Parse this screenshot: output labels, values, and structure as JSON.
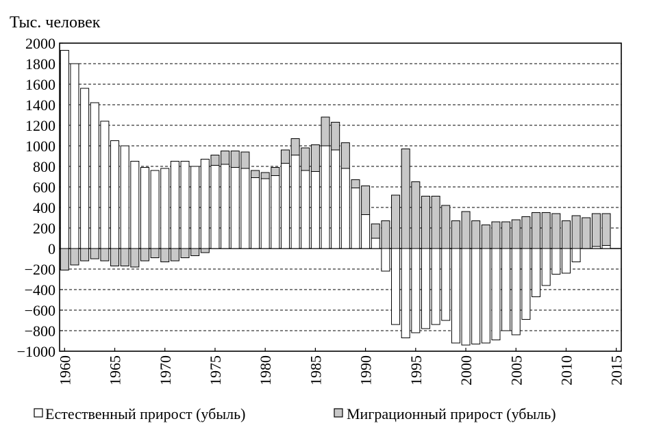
{
  "chart_data": {
    "type": "bar",
    "stacked": true,
    "title": "",
    "ylabel": "Тыс. человек",
    "xlabel": "",
    "ylim": [
      -1000,
      2000
    ],
    "yticks": [
      2000,
      1800,
      1600,
      1400,
      1200,
      1000,
      800,
      600,
      400,
      200,
      0,
      -200,
      -400,
      -600,
      -800,
      -1000
    ],
    "ytick_labels": [
      "2000",
      "1800",
      "1600",
      "1400",
      "1200",
      "1000",
      "800",
      "600",
      "400",
      "200",
      "0",
      "−200",
      "−400",
      "−600",
      "−800",
      "−1000"
    ],
    "xticks": [
      "1960",
      "1965",
      "1970",
      "1975",
      "1980",
      "1985",
      "1990",
      "1995",
      "2000",
      "2005",
      "2010",
      "2015"
    ],
    "grid": "horizontal-dashed",
    "legend_position": "bottom",
    "years": [
      1960,
      1961,
      1962,
      1963,
      1964,
      1965,
      1966,
      1967,
      1968,
      1969,
      1970,
      1971,
      1972,
      1973,
      1974,
      1975,
      1976,
      1977,
      1978,
      1979,
      1980,
      1981,
      1982,
      1983,
      1984,
      1985,
      1986,
      1987,
      1988,
      1989,
      1990,
      1991,
      1992,
      1993,
      1994,
      1995,
      1996,
      1997,
      1998,
      1999,
      2000,
      2001,
      2002,
      2003,
      2004,
      2005,
      2006,
      2007,
      2008,
      2009,
      2010,
      2011,
      2012,
      2013,
      2014
    ],
    "series": [
      {
        "name": "Естественный прирост (убыль)",
        "color": "#ffffff",
        "values": [
          1930,
          1800,
          1560,
          1420,
          1240,
          1050,
          1000,
          850,
          790,
          760,
          780,
          850,
          850,
          800,
          870,
          810,
          820,
          790,
          780,
          690,
          680,
          710,
          830,
          910,
          760,
          750,
          1000,
          960,
          780,
          590,
          330,
          100,
          -220,
          -740,
          -870,
          -820,
          -780,
          -740,
          -700,
          -920,
          -940,
          -930,
          -920,
          -890,
          -800,
          -840,
          -690,
          -470,
          -360,
          -250,
          -240,
          -130,
          0,
          20,
          30
        ]
      },
      {
        "name": "Миграционный прирост (убыль)",
        "color": "#c8c8c8",
        "values": [
          -210,
          -160,
          -120,
          -100,
          -120,
          -170,
          -170,
          -180,
          -120,
          -90,
          -130,
          -120,
          -90,
          -70,
          -40,
          100,
          130,
          160,
          160,
          70,
          60,
          80,
          130,
          160,
          220,
          260,
          280,
          270,
          250,
          80,
          280,
          140,
          270,
          520,
          970,
          650,
          510,
          510,
          420,
          270,
          360,
          270,
          230,
          260,
          260,
          280,
          310,
          350,
          350,
          340,
          270,
          320,
          300,
          320,
          310
        ]
      }
    ]
  }
}
